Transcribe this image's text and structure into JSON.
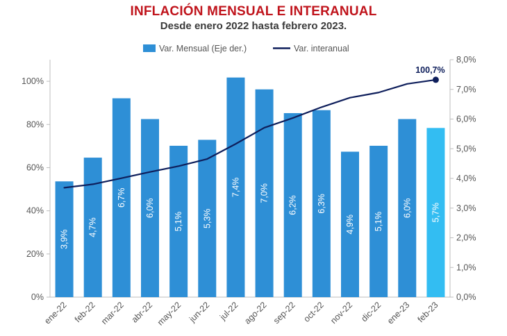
{
  "title": "INFLACIÓN MENSUAL E INTERANUAL",
  "subtitle": "Desde enero 2022 hasta febrero 2023.",
  "colors": {
    "title": "#c0141c",
    "bar": "#2e8fd6",
    "bar_highlight": "#33bdf2",
    "line": "#0e1e5b"
  },
  "chart_data": {
    "type": "bar",
    "categories": [
      "ene-22",
      "feb-22",
      "mar-22",
      "abr-22",
      "may-22",
      "jun-22",
      "jul-22",
      "ago-22",
      "sep-22",
      "oct-22",
      "nov-22",
      "dic-22",
      "ene-23",
      "feb-23"
    ],
    "series": [
      {
        "name": "Var. Mensual (Eje der.)",
        "type": "bar",
        "axis": "right",
        "values": [
          3.9,
          4.7,
          6.7,
          6.0,
          5.1,
          5.3,
          7.4,
          7.0,
          6.2,
          6.3,
          4.9,
          5.1,
          6.0,
          5.7
        ],
        "labels": [
          "3,9%",
          "4,7%",
          "6,7%",
          "6,0%",
          "5,1%",
          "5,3%",
          "7,4%",
          "7,0%",
          "6,2%",
          "6,3%",
          "4,9%",
          "5,1%",
          "6,0%",
          "5,7%"
        ]
      },
      {
        "name": "Var. interanual",
        "type": "line",
        "axis": "left",
        "values": [
          50.7,
          52.3,
          55.1,
          58.0,
          60.7,
          64.0,
          71.0,
          78.5,
          83.0,
          88.0,
          92.4,
          94.8,
          98.8,
          100.7
        ]
      }
    ],
    "annotations": [
      {
        "index": 13,
        "series": "Var. interanual",
        "text": "100,7%"
      }
    ],
    "highlight_index": 13,
    "left_axis": {
      "ylim": [
        0,
        110
      ],
      "ticks": [
        0,
        20,
        40,
        60,
        80,
        100
      ],
      "tick_labels": [
        "0%",
        "20%",
        "40%",
        "60%",
        "80%",
        "100%"
      ]
    },
    "right_axis": {
      "ylim": [
        0,
        8.0
      ],
      "ticks": [
        0,
        1,
        2,
        3,
        4,
        5,
        6,
        7,
        8
      ],
      "tick_labels": [
        "0,0%",
        "1,0%",
        "2,0%",
        "3,0%",
        "4,0%",
        "5,0%",
        "6,0%",
        "7,0%",
        "8,0%"
      ]
    },
    "legend_position": "top-center",
    "grid": false
  }
}
